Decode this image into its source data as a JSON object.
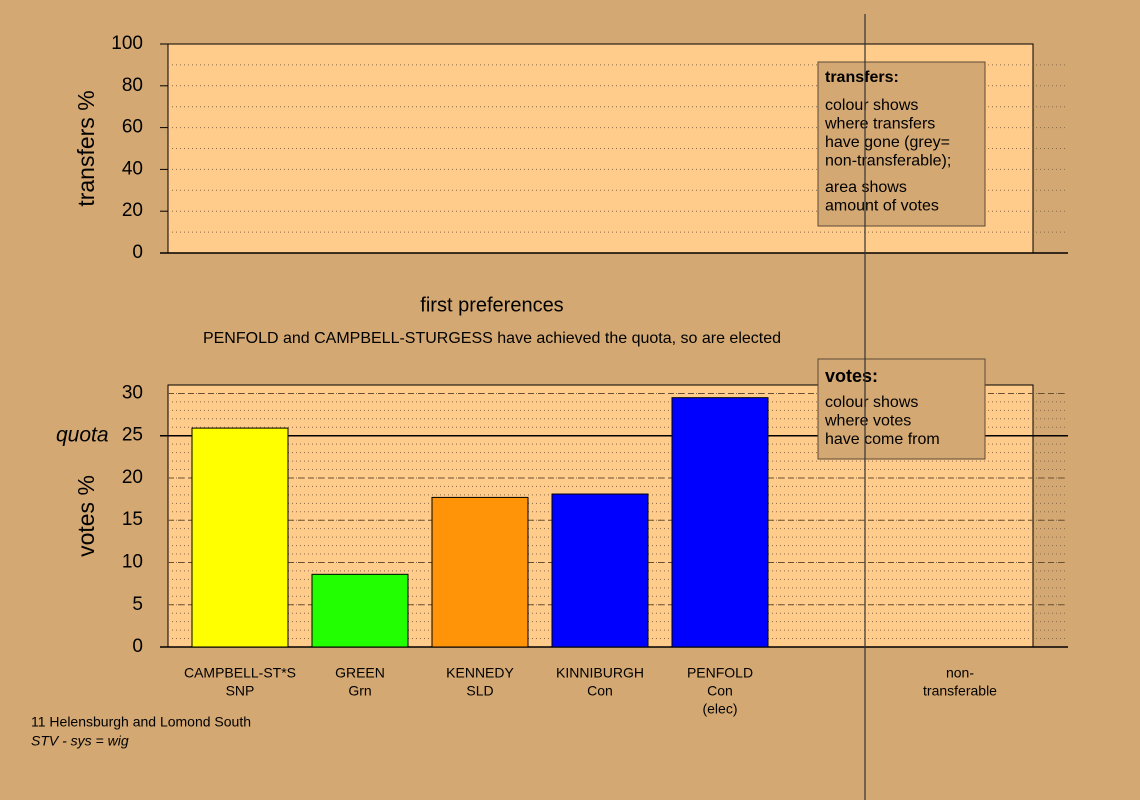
{
  "chart_data": [
    {
      "type": "bar",
      "ylabel": "transfers %",
      "xlabel": "first preferences",
      "ylim": [
        0,
        100
      ],
      "yticks": [
        0,
        20,
        40,
        60,
        80,
        100
      ],
      "minor_grid": 10,
      "categories": [],
      "values": [],
      "legend_title": "transfers:",
      "legend_blocks": [
        [
          "colour shows",
          "where transfers",
          "have gone (grey=",
          "non-transferable);"
        ],
        [
          "area shows",
          "amount of votes"
        ]
      ]
    },
    {
      "type": "bar",
      "ylabel": "votes %",
      "subtitle": "PENFOLD and CAMPBELL-STURGESS have achieved the quota, so are elected",
      "ylim": [
        0,
        31
      ],
      "yticks": [
        0,
        5,
        10,
        15,
        20,
        25,
        30
      ],
      "minor_grid": 1,
      "quota": {
        "label": "quota",
        "value": 25
      },
      "categories": [
        [
          "CAMPBELL-ST*S",
          "SNP"
        ],
        [
          "GREEN",
          "Grn"
        ],
        [
          "KENNEDY",
          "SLD"
        ],
        [
          "KINNIBURGH",
          "Con"
        ],
        [
          "PENFOLD",
          "Con",
          "(elec)"
        ],
        null,
        [
          "non-",
          "transferable"
        ]
      ],
      "values": [
        25.9,
        8.6,
        17.7,
        18.1,
        29.5,
        null,
        null
      ],
      "colors": [
        "#ffff00",
        "#22ff00",
        "#ff9408",
        "#0000ff",
        "#0000ff",
        null,
        null
      ],
      "legend_title": "votes:",
      "legend_blocks": [
        [
          "colour shows",
          "where votes",
          "have come from"
        ]
      ]
    }
  ],
  "footer": {
    "title": "11 Helensburgh and Lomond South",
    "system": "STV - sys = wig"
  }
}
